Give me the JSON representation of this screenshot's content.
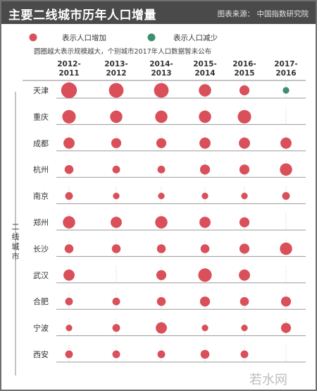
{
  "header": {
    "title": "主要二线城市历年人口增量",
    "source": "图表来源：  中国指数研究院"
  },
  "legend": {
    "increase_label": "表示人口增加",
    "decrease_label": "表示人口减少",
    "increase_color": "#d9505a",
    "decrease_color": "#3f8f6e"
  },
  "note": "圆圈越大表示规模越大，个别城市2017年人口数据暂未公布",
  "y_axis_label": "二线城市",
  "watermark": "若水网",
  "chart_data": {
    "type": "scatter",
    "title": "主要二线城市历年人口增量",
    "periods": [
      [
        "2012-",
        "2011"
      ],
      [
        "2013-",
        "2012"
      ],
      [
        "2014-",
        "2013"
      ],
      [
        "2015-",
        "2014"
      ],
      [
        "2016-",
        "2015"
      ],
      [
        "2017-",
        "2016"
      ]
    ],
    "cities": [
      "天津",
      "重庆",
      "成都",
      "杭州",
      "南京",
      "郑州",
      "长沙",
      "武汉",
      "合肥",
      "宁波",
      "西安"
    ],
    "size_scale": "relative",
    "values": [
      [
        10,
        9,
        9,
        7,
        5,
        -2
      ],
      [
        8,
        7,
        7,
        7,
        8,
        null
      ],
      [
        6,
        5,
        5,
        6,
        6,
        6
      ],
      [
        4,
        3,
        3,
        5,
        5,
        7
      ],
      [
        3,
        2,
        2,
        2,
        2,
        3
      ],
      [
        7,
        6,
        7,
        6,
        5,
        null
      ],
      [
        4,
        4,
        4,
        4,
        5,
        7
      ],
      [
        6,
        null,
        5,
        8,
        6,
        null
      ],
      [
        3,
        3,
        4,
        5,
        4,
        5
      ],
      [
        2,
        3,
        6,
        2,
        2,
        5
      ],
      [
        3,
        3,
        3,
        4,
        3,
        null
      ]
    ]
  }
}
